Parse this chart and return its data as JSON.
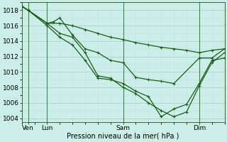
{
  "xlabel": "Pression niveau de la mer( hPa )",
  "ylim": [
    1003.5,
    1019.0
  ],
  "xlim": [
    0,
    96
  ],
  "yticks": [
    1004,
    1006,
    1008,
    1010,
    1012,
    1014,
    1016,
    1018
  ],
  "xtick_positions": [
    3,
    12,
    48,
    84
  ],
  "xtick_labels": [
    "Ven",
    "Lun",
    "Sam",
    "Dim"
  ],
  "xtick_vlines": [
    3,
    12,
    48,
    84
  ],
  "bg_color": "#cceee8",
  "grid_major_color": "#aad4cc",
  "grid_minor_color": "#c0e4de",
  "line_color": "#1a5c1a",
  "series": [
    {
      "x": [
        0,
        3,
        12,
        18,
        24,
        30,
        36,
        42,
        48,
        54,
        60,
        66,
        72,
        78,
        84,
        90,
        96
      ],
      "y": [
        1018.5,
        1018.0,
        1016.3,
        1016.3,
        1016.0,
        1015.5,
        1015.0,
        1014.5,
        1014.2,
        1013.8,
        1013.5,
        1013.2,
        1013.0,
        1012.8,
        1012.5,
        1012.8,
        1013.0
      ]
    },
    {
      "x": [
        0,
        3,
        12,
        15,
        18,
        24,
        30,
        36,
        42,
        48,
        54,
        60,
        66,
        72,
        84,
        90,
        96
      ],
      "y": [
        1018.5,
        1018.0,
        1016.3,
        1016.5,
        1017.0,
        1014.8,
        1013.0,
        1012.5,
        1011.5,
        1011.2,
        1009.3,
        1009.0,
        1008.8,
        1008.5,
        1011.8,
        1011.8,
        1013.0
      ]
    },
    {
      "x": [
        0,
        3,
        12,
        18,
        24,
        30,
        36,
        42,
        48,
        54,
        60,
        66,
        72,
        78,
        84,
        90,
        96
      ],
      "y": [
        1018.5,
        1018.0,
        1016.3,
        1015.0,
        1014.5,
        1012.5,
        1009.5,
        1009.2,
        1008.0,
        1007.2,
        1006.0,
        1005.0,
        1004.2,
        1004.8,
        1008.2,
        1011.2,
        1012.5
      ]
    },
    {
      "x": [
        0,
        3,
        12,
        18,
        24,
        30,
        36,
        42,
        48,
        54,
        60,
        66,
        72,
        78,
        84,
        90,
        96
      ],
      "y": [
        1018.5,
        1018.0,
        1016.0,
        1014.5,
        1013.5,
        1011.5,
        1009.2,
        1009.0,
        1008.5,
        1007.5,
        1006.8,
        1004.2,
        1005.2,
        1005.8,
        1008.5,
        1011.5,
        1011.8
      ]
    }
  ]
}
